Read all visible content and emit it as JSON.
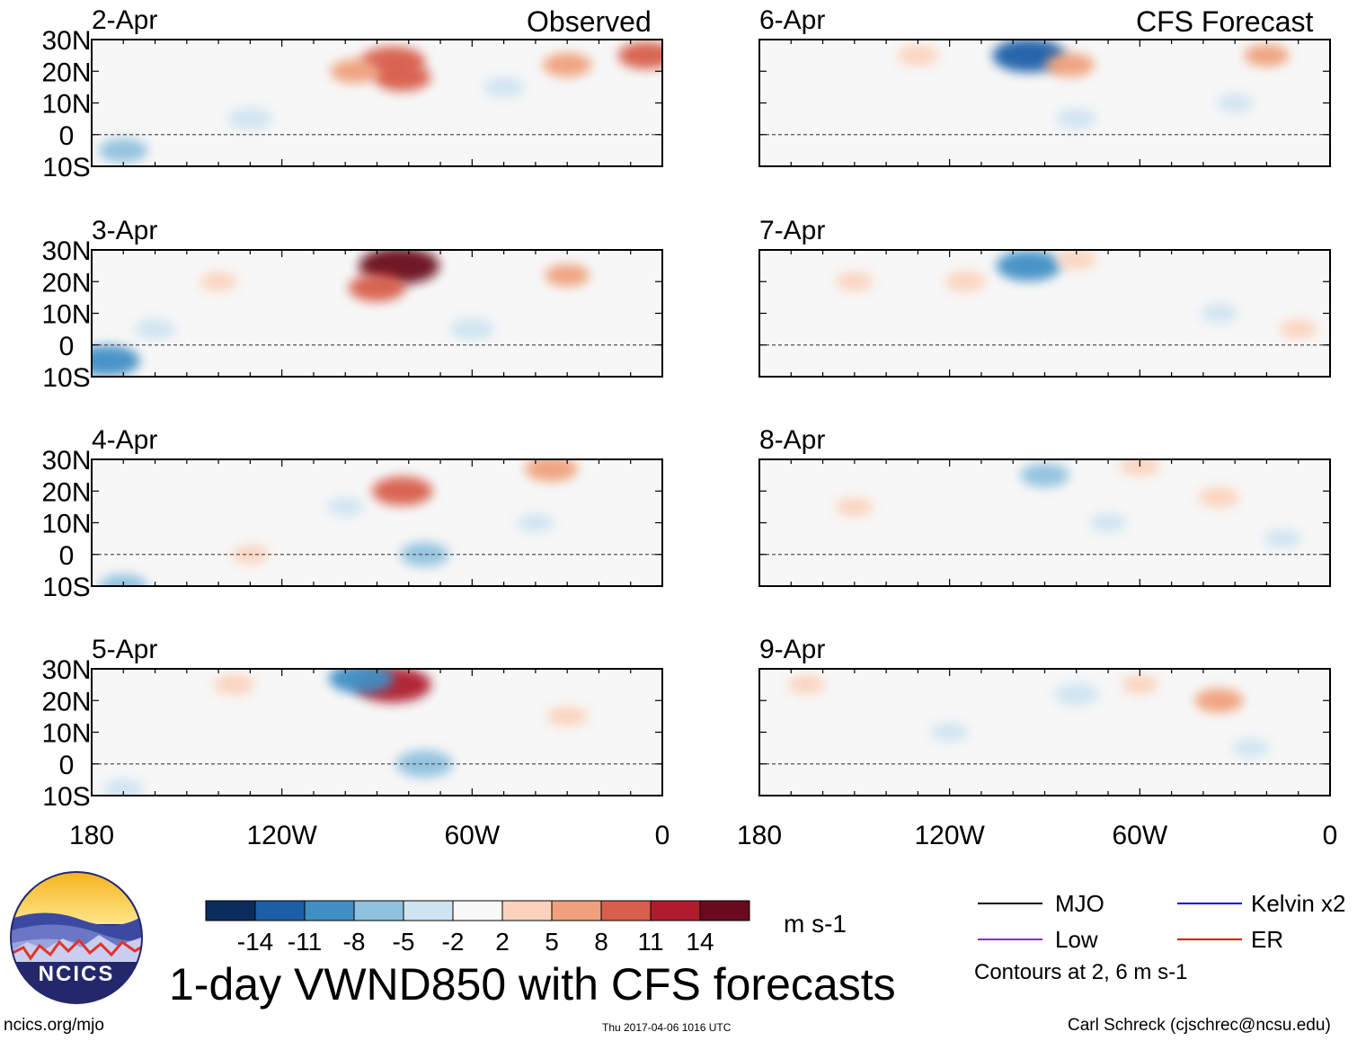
{
  "figure": {
    "title": "1-day VWND850 with CFS forecasts",
    "observed_label": "Observed",
    "forecast_label": "CFS Forecast",
    "units": "m s-1",
    "footer_left": "ncics.org/mjo",
    "footer_center": "Thu 2017-04-06 1016 UTC",
    "footer_right": "Carl Schreck (cjschrec@ncsu.edu)",
    "logo_text": "NCICS"
  },
  "chart_data": {
    "type": "heatmap",
    "variable": "850-hPa meridional wind anomaly (VWND850)",
    "xlim": [
      -180,
      0
    ],
    "ylim": [
      -10,
      30
    ],
    "x_ticks": [
      {
        "value": -180,
        "label": "180"
      },
      {
        "value": -120,
        "label": "120W"
      },
      {
        "value": -60,
        "label": "60W"
      },
      {
        "value": 0,
        "label": "0"
      }
    ],
    "y_ticks": [
      {
        "value": 30,
        "label": "30N"
      },
      {
        "value": 20,
        "label": "20N"
      },
      {
        "value": 10,
        "label": "10N"
      },
      {
        "value": 0,
        "label": "0"
      },
      {
        "value": -10,
        "label": "10S"
      }
    ],
    "colorbar": {
      "levels": [
        "-14",
        "-11",
        "-8",
        "-5",
        "-2",
        "2",
        "5",
        "8",
        "11",
        "14"
      ],
      "colors": [
        "#0a2d5e",
        "#1c5ea8",
        "#3f8fc5",
        "#8fc1de",
        "#cfe4f1",
        "#f8f8f8",
        "#fbd3bd",
        "#f0a07c",
        "#d85f4c",
        "#b01c2e",
        "#6a0a1e"
      ]
    },
    "legend": [
      {
        "label": "MJO",
        "color": "#000000"
      },
      {
        "label": "Kelvin x2",
        "color": "#0000e0"
      },
      {
        "label": "Low",
        "color": "#8a2be2"
      },
      {
        "label": "ER",
        "color": "#e00000"
      }
    ],
    "contour_note": "Contours at 2, 6 m s-1",
    "panels": [
      {
        "date": "2-Apr",
        "source": "observed",
        "anomalies": [
          {
            "lon": -85,
            "lat": 23,
            "value": 10
          },
          {
            "lon": -82,
            "lat": 18,
            "value": 8
          },
          {
            "lon": -97,
            "lat": 20,
            "value": 6
          },
          {
            "lon": -30,
            "lat": 22,
            "value": 6
          },
          {
            "lon": -130,
            "lat": 5,
            "value": -5
          },
          {
            "lon": -170,
            "lat": -5,
            "value": -6
          },
          {
            "lon": -50,
            "lat": 15,
            "value": -4
          },
          {
            "lon": -5,
            "lat": 25,
            "value": 8
          }
        ]
      },
      {
        "date": "3-Apr",
        "source": "observed",
        "anomalies": [
          {
            "lon": -83,
            "lat": 25,
            "value": 14
          },
          {
            "lon": -90,
            "lat": 18,
            "value": 8
          },
          {
            "lon": -175,
            "lat": -5,
            "value": -10
          },
          {
            "lon": -160,
            "lat": 5,
            "value": -4
          },
          {
            "lon": -60,
            "lat": 5,
            "value": -5
          },
          {
            "lon": -30,
            "lat": 22,
            "value": 5
          },
          {
            "lon": -140,
            "lat": 20,
            "value": 3
          }
        ]
      },
      {
        "date": "4-Apr",
        "source": "observed",
        "anomalies": [
          {
            "lon": -82,
            "lat": 20,
            "value": 9
          },
          {
            "lon": -35,
            "lat": 27,
            "value": 7
          },
          {
            "lon": -75,
            "lat": 0,
            "value": -6
          },
          {
            "lon": -40,
            "lat": 10,
            "value": -3
          },
          {
            "lon": -170,
            "lat": -10,
            "value": -6
          },
          {
            "lon": -130,
            "lat": 0,
            "value": 3
          },
          {
            "lon": -100,
            "lat": 15,
            "value": -3
          }
        ]
      },
      {
        "date": "5-Apr",
        "source": "observed",
        "anomalies": [
          {
            "lon": -85,
            "lat": 25,
            "value": 13
          },
          {
            "lon": -95,
            "lat": 27,
            "value": -10
          },
          {
            "lon": -75,
            "lat": 0,
            "value": -8
          },
          {
            "lon": -135,
            "lat": 25,
            "value": 4
          },
          {
            "lon": -30,
            "lat": 15,
            "value": 4
          },
          {
            "lon": -170,
            "lat": -8,
            "value": -4
          }
        ]
      },
      {
        "date": "6-Apr",
        "source": "CFS forecast",
        "anomalies": [
          {
            "lon": -95,
            "lat": 25,
            "value": -12
          },
          {
            "lon": -82,
            "lat": 22,
            "value": 6
          },
          {
            "lon": -20,
            "lat": 25,
            "value": 5
          },
          {
            "lon": -130,
            "lat": 25,
            "value": 4
          },
          {
            "lon": -80,
            "lat": 5,
            "value": -4
          },
          {
            "lon": -30,
            "lat": 10,
            "value": -3
          }
        ]
      },
      {
        "date": "7-Apr",
        "source": "CFS forecast",
        "anomalies": [
          {
            "lon": -95,
            "lat": 25,
            "value": -10
          },
          {
            "lon": -80,
            "lat": 27,
            "value": 4
          },
          {
            "lon": -115,
            "lat": 20,
            "value": 4
          },
          {
            "lon": -35,
            "lat": 10,
            "value": -3
          },
          {
            "lon": -10,
            "lat": 5,
            "value": 3
          },
          {
            "lon": -150,
            "lat": 20,
            "value": 3
          }
        ]
      },
      {
        "date": "8-Apr",
        "source": "CFS forecast",
        "anomalies": [
          {
            "lon": -90,
            "lat": 25,
            "value": -6
          },
          {
            "lon": -60,
            "lat": 28,
            "value": 4
          },
          {
            "lon": -35,
            "lat": 18,
            "value": 4
          },
          {
            "lon": -70,
            "lat": 10,
            "value": -3
          },
          {
            "lon": -150,
            "lat": 15,
            "value": 3
          },
          {
            "lon": -15,
            "lat": 5,
            "value": -3
          }
        ]
      },
      {
        "date": "9-Apr",
        "source": "CFS forecast",
        "anomalies": [
          {
            "lon": -35,
            "lat": 20,
            "value": 6
          },
          {
            "lon": -80,
            "lat": 22,
            "value": -5
          },
          {
            "lon": -165,
            "lat": 25,
            "value": 3
          },
          {
            "lon": -120,
            "lat": 10,
            "value": -3
          },
          {
            "lon": -60,
            "lat": 25,
            "value": 3
          },
          {
            "lon": -25,
            "lat": 5,
            "value": -3
          }
        ]
      }
    ]
  }
}
